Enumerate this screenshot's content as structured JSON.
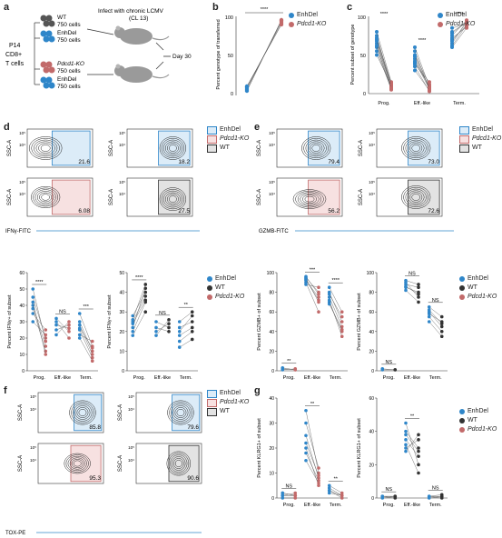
{
  "colors": {
    "enhdel": "#2f86c9",
    "pdcd1": "#c26a6a",
    "wt": "#333333",
    "enh_gate": "#dcecf8",
    "pd_gate": "#f7e1e1",
    "wt_gate": "#e3e3e3"
  },
  "a": {
    "letter": "a",
    "p14": "P14",
    "cd8": "CD8+",
    "tcells": "T cells",
    "wt": "WT",
    "wt_cells": "750 cells",
    "enh": "EnhDel",
    "enh_cells": "750 cells",
    "pd": "Pdcd1-KO",
    "pd_cells": "750 cells",
    "enh2": "EnhDel",
    "enh2_cells": "750 cells",
    "infect": "Infect with chronic LCMV",
    "cl13": "(CL 13)",
    "day": "Day 30"
  },
  "b": {
    "letter": "b",
    "ylabel": "Percent genotype of transferred",
    "sig": "****",
    "leg1": "EnhDel",
    "leg2": "Pdcd1-KO",
    "t100": "100",
    "t50": "50",
    "t0": "0"
  },
  "c": {
    "letter": "c",
    "ylabel": "Percent subset of genotype",
    "x1": "Prog.",
    "x2": "Eff.-like",
    "x3": "Term.",
    "s1": "****",
    "s2": "****",
    "s3": "****",
    "leg1": "EnhDel",
    "leg2": "Pdcd1-KO",
    "t100": "100",
    "t50": "50",
    "t0": "0"
  },
  "d": {
    "letter": "d",
    "v1": "21.6",
    "v2": "18.2",
    "v3": "6.08",
    "v4": "27.5",
    "yaxis": "SSC-A",
    "xaxis": "IFNγ-FITC",
    "leg1": "EnhDel",
    "leg2": "Pdcd1-KO",
    "leg3": "WT",
    "plot1_ylabel": "Percent IFNγ+ of subset",
    "plot2_ylabel": "Percent IFNγ+ of subset",
    "x1": "Prog.",
    "x2": "Eff.-like",
    "x3": "Term.",
    "p1s1": "****",
    "p1s2": "NS",
    "p1s3": "***",
    "p2s1": "****",
    "p2s2": "NS",
    "p2s3": "**",
    "legb1": "EnhDel",
    "legb2": "WT",
    "legb3": "Pdcd1-KO"
  },
  "e": {
    "letter": "e",
    "v1": "79.4",
    "v2": "73.0",
    "v3": "56.2",
    "v4": "72.6",
    "yaxis": "SSC-A",
    "xaxis": "GZMB-FITC",
    "leg1": "EnhDel",
    "leg2": "Pdcd1-KO",
    "leg3": "WT",
    "plot1_ylabel": "Percent GZMB+ of subset",
    "plot2_ylabel": "Percent GZMB+ of subset",
    "x1": "Prog.",
    "x2": "Eff.-like",
    "x3": "Term.",
    "p1s1": "**",
    "p1s2": "***",
    "p1s3": "****",
    "p2s1": "NS",
    "p2s2": "NS",
    "p2s3": "NS",
    "legb1": "EnhDel",
    "legb2": "WT",
    "legb3": "Pdcd1-KO"
  },
  "f": {
    "letter": "f",
    "v1": "85.8",
    "v2": "79.6",
    "v3": "95.3",
    "v4": "90.6",
    "yaxis": "SSC-A",
    "xaxis": "TOX-PE",
    "leg1": "EnhDel",
    "leg2": "Pdcd1-KO",
    "leg3": "WT"
  },
  "g": {
    "letter": "g",
    "plot1_ylabel": "Percent KLRG1+ of subset",
    "plot2_ylabel": "Percent KLRG1+ of subset",
    "x1": "Prog.",
    "x2": "Eff.-like",
    "x3": "Term.",
    "p1s1": "NS",
    "p1s2": "**",
    "p1s3": "**",
    "p2s1": "NS",
    "p2s2": "**",
    "p2s3": "NS",
    "leg1": "EnhDel",
    "leg2": "WT",
    "leg3": "Pdcd1-KO"
  },
  "ticks": {
    "t0": "0",
    "t10": "10",
    "t20": "20",
    "t30": "30",
    "t40": "40",
    "t50": "50",
    "t60": "60",
    "t80": "80",
    "t100": "100",
    "t5": "10⁵",
    "t4": "10⁴",
    "t3": "10³",
    "t2": "10²",
    "tm": "-10²",
    "tm3": "-10³",
    "tp4": "10⁴",
    "tp5": "10⁵"
  }
}
